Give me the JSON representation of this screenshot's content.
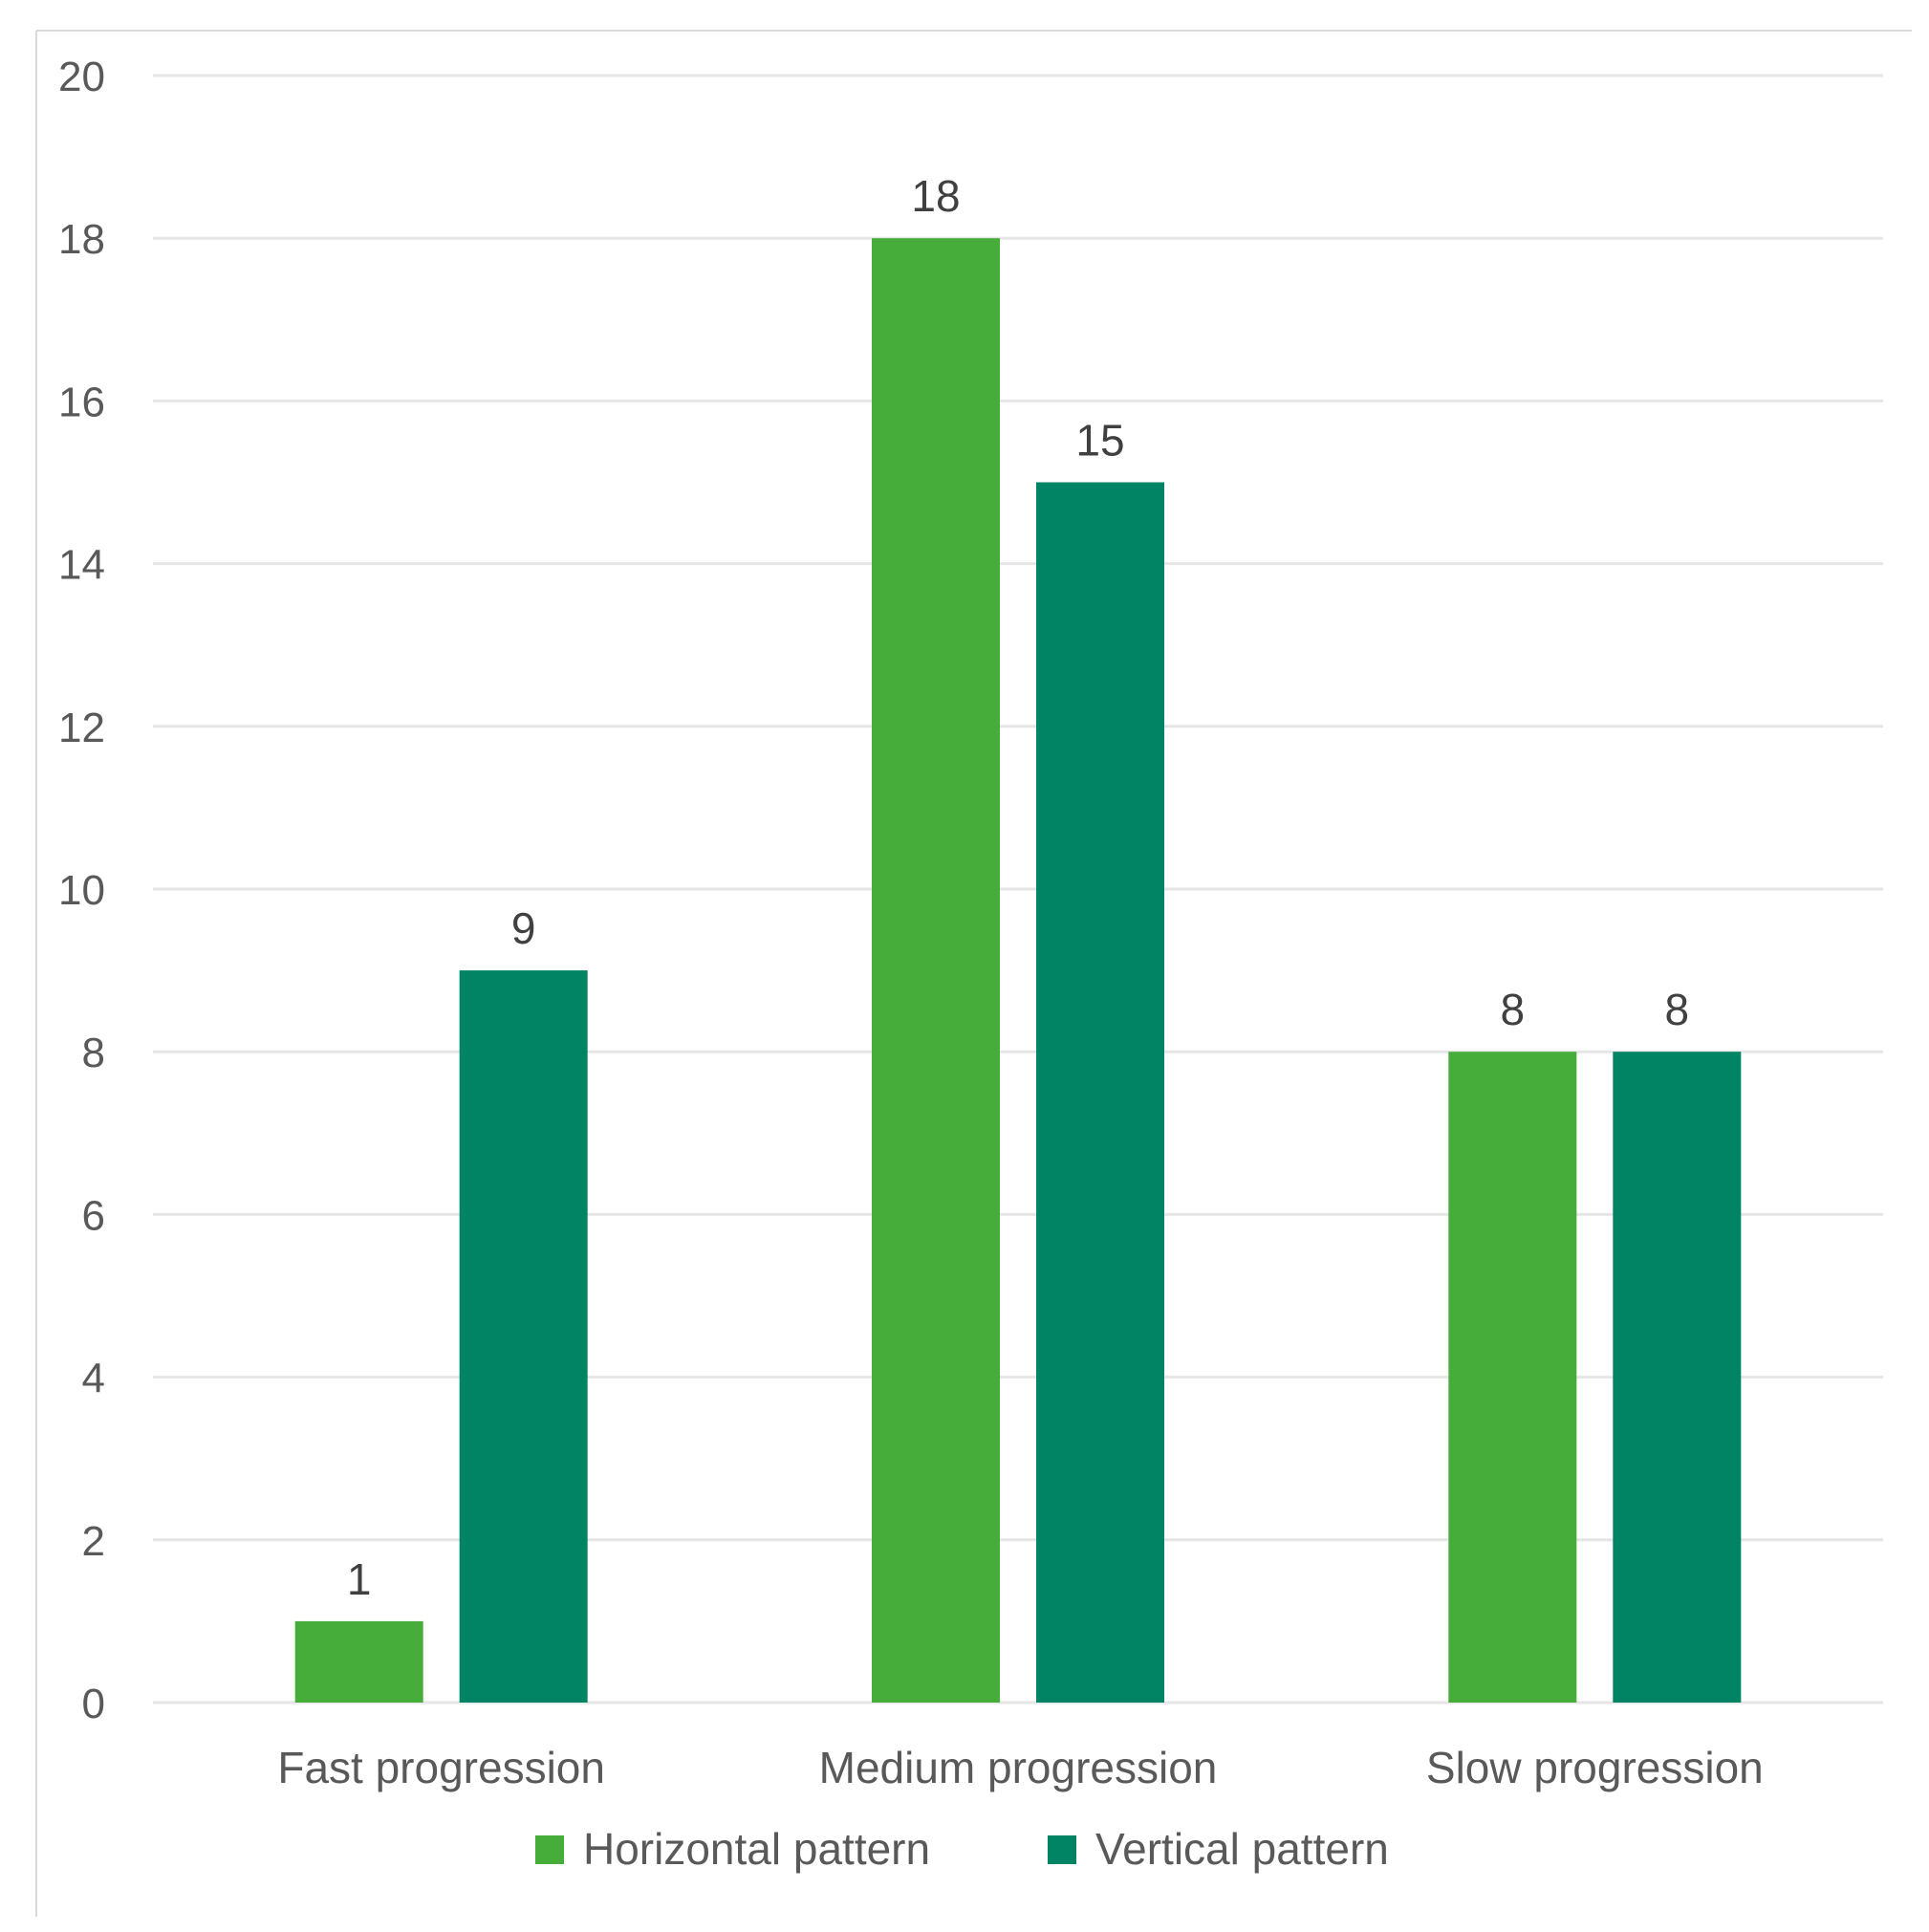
{
  "chart_data": {
    "type": "bar",
    "title": "",
    "xlabel": "",
    "ylabel": "",
    "categories": [
      "Fast progression",
      "Medium progression",
      "Slow progression"
    ],
    "series": [
      {
        "name": "Horizontal pattern",
        "values": [
          1,
          18,
          8
        ],
        "color": "#46ad3b"
      },
      {
        "name": "Vertical pattern",
        "values": [
          9,
          15,
          8
        ],
        "color": "#008464"
      }
    ],
    "ylim": [
      0,
      20
    ],
    "yticks": [
      "0",
      "2",
      "4",
      "6",
      "8",
      "10",
      "12",
      "14",
      "16",
      "18",
      "20"
    ],
    "grid": true,
    "legend": "bottom",
    "colors": {
      "gridline": "#e6e6e6",
      "frame": "#d9d9d9"
    }
  }
}
